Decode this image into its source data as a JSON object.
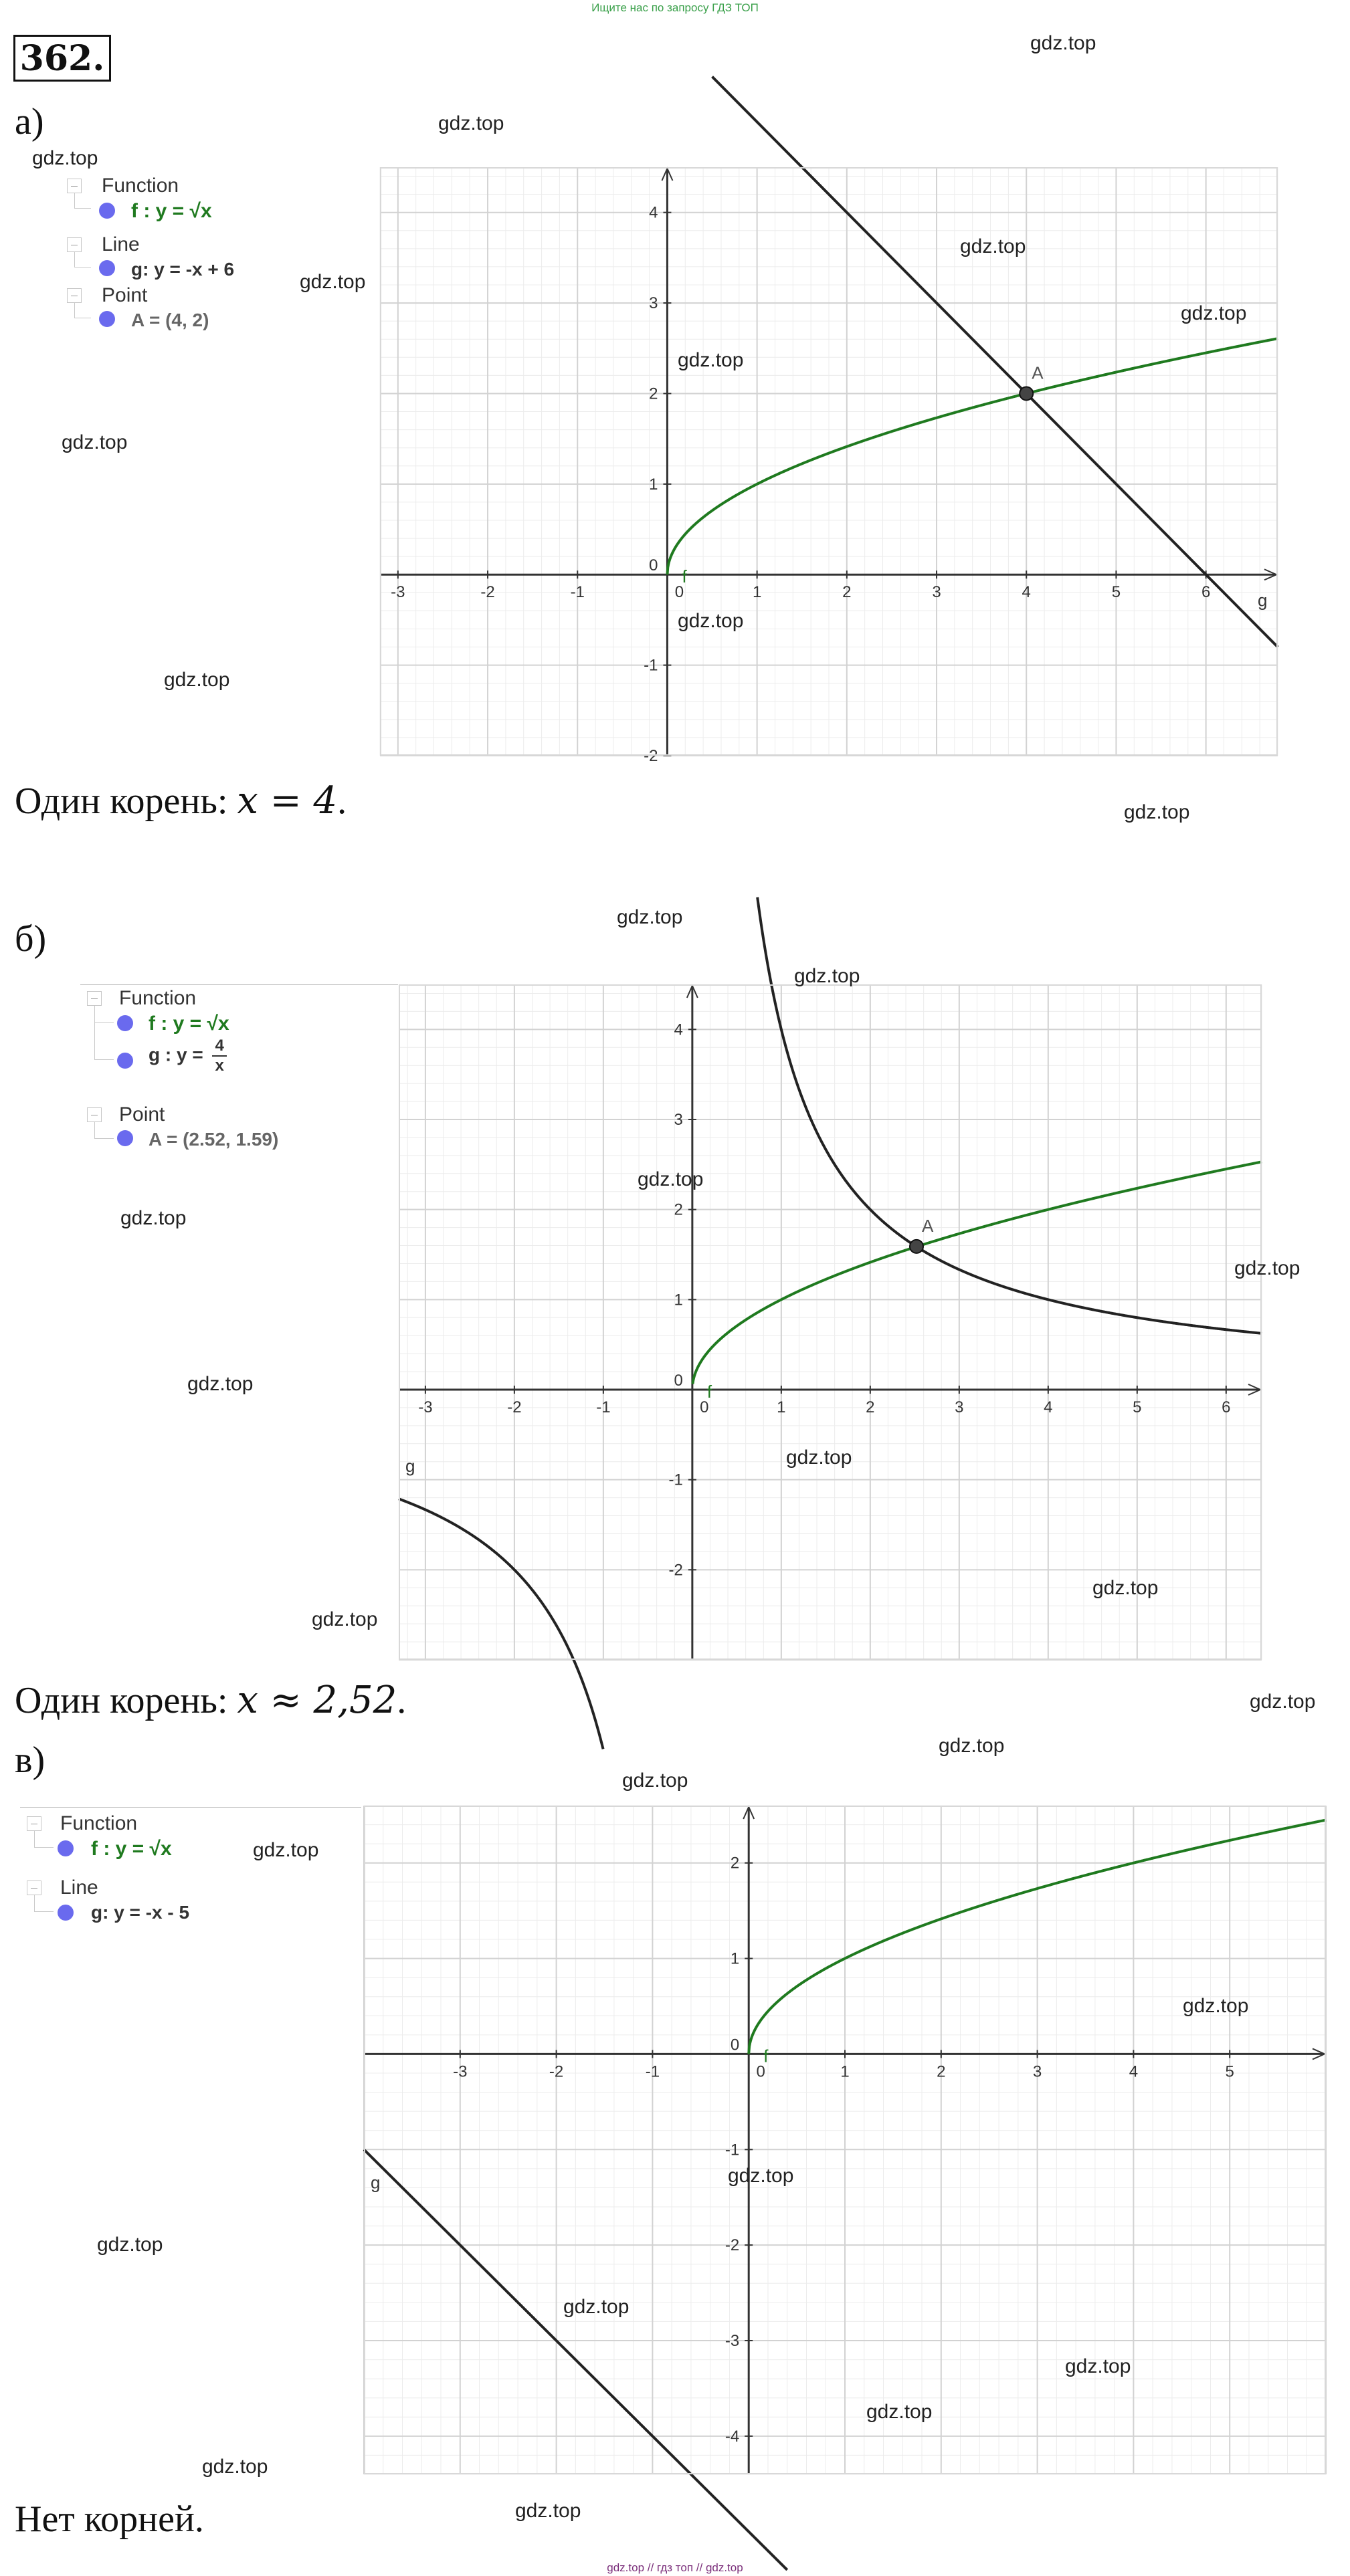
{
  "top_banner": "Ищите нас по запросу ГДЗ ТОП",
  "task_number": "362.",
  "watermark": "gdz.top",
  "footer": "gdz.top // гдз топ // gdz.top",
  "colors": {
    "function": "#1f7a1f",
    "line": "#222222",
    "point": "#444444",
    "dot": "#6a6aee",
    "grid_major": "#d2d2d2",
    "grid_minor": "#ececec"
  },
  "parts": [
    {
      "label": "а)",
      "algebra": {
        "cat1": "Function",
        "f": "f : y = √x",
        "cat2": "Line",
        "g": "g: y = -x + 6",
        "cat3": "Point",
        "A": "A = (4, 2)"
      },
      "answer_prefix": "Один корень: ",
      "answer_math": "x = 4",
      "answer_suffix": "."
    },
    {
      "label": "б)",
      "algebra": {
        "cat1": "Function",
        "f": "f : y = √x",
        "g_prefix": "g : y =",
        "g_num": "4",
        "g_den": "x",
        "cat3": "Point",
        "A": "A = (2.52, 1.59)"
      },
      "answer_prefix": "Один корень: ",
      "answer_math": "x ≈ 2,52",
      "answer_suffix": "."
    },
    {
      "label": "в)",
      "algebra": {
        "cat1": "Function",
        "f": "f : y = √x",
        "cat2": "Line",
        "g": "g: y = -x - 5"
      },
      "answer_text": "Нет корней."
    }
  ],
  "chart_data": [
    {
      "type": "line",
      "xlim": [
        -3.2,
        6.8
      ],
      "ylim": [
        -2,
        4.5
      ],
      "x_ticks": [
        -3,
        -2,
        -1,
        0,
        1,
        2,
        3,
        4,
        5,
        6
      ],
      "y_ticks": [
        -2,
        -1,
        0,
        1,
        2,
        3,
        4
      ],
      "grid": true,
      "series": [
        {
          "name": "f",
          "formula": "sqrt(x)",
          "color": "#1f7a1f"
        },
        {
          "name": "g",
          "formula": "-x + 6",
          "color": "#222222"
        }
      ],
      "points": [
        {
          "name": "A",
          "x": 4,
          "y": 2
        }
      ]
    },
    {
      "type": "line",
      "xlim": [
        -3.3,
        6.4
      ],
      "ylim": [
        -3,
        4.5
      ],
      "x_ticks": [
        -3,
        -2,
        -1,
        0,
        1,
        2,
        3,
        4,
        5,
        6
      ],
      "y_ticks": [
        -2,
        -1,
        0,
        1,
        2,
        3,
        4
      ],
      "grid": true,
      "series": [
        {
          "name": "f",
          "formula": "sqrt(x)",
          "color": "#1f7a1f"
        },
        {
          "name": "g",
          "formula": "4 / x",
          "color": "#222222"
        }
      ],
      "points": [
        {
          "name": "A",
          "x": 2.52,
          "y": 1.59
        }
      ]
    },
    {
      "type": "line",
      "xlim": [
        -4,
        6
      ],
      "ylim": [
        -4.4,
        2.6
      ],
      "x_ticks": [
        -3,
        -2,
        -1,
        0,
        1,
        2,
        3,
        4,
        5
      ],
      "y_ticks": [
        -4,
        -3,
        -2,
        -1,
        0,
        1,
        2
      ],
      "grid": true,
      "series": [
        {
          "name": "f",
          "formula": "sqrt(x)",
          "color": "#1f7a1f"
        },
        {
          "name": "g",
          "formula": "-x - 5",
          "color": "#222222"
        }
      ],
      "points": []
    }
  ]
}
